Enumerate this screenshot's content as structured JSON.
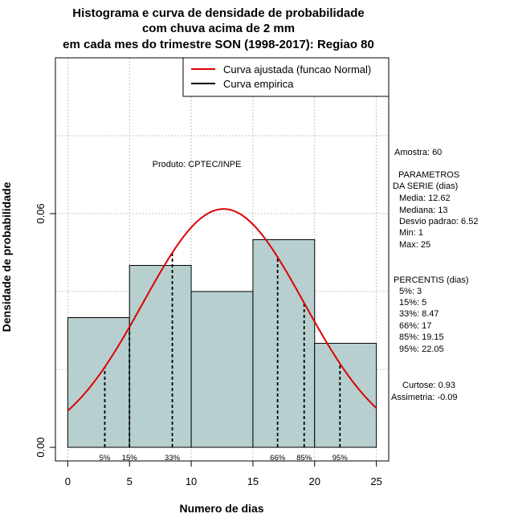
{
  "chart_data": {
    "type": "histogram",
    "title_lines": [
      "Histograma e curva de densidade de probabilidade",
      "com chuva acima de 2 mm",
      "em cada mes do trimestre SON (1998-2017): Regiao 80"
    ],
    "xlabel": "Numero de dias",
    "ylabel": "Densidade de probabilidade",
    "xlim": [
      -1,
      26
    ],
    "ylim": [
      -0.0035,
      0.1
    ],
    "x_ticks": [
      0,
      5,
      10,
      15,
      20,
      25
    ],
    "y_ticks": [
      0.0,
      0.06
    ],
    "y_tick_labels": [
      "0.00",
      "0.06"
    ],
    "bins": [
      {
        "start": 0,
        "end": 5,
        "density": 0.0333
      },
      {
        "start": 5,
        "end": 10,
        "density": 0.0467
      },
      {
        "start": 10,
        "end": 15,
        "density": 0.04
      },
      {
        "start": 15,
        "end": 20,
        "density": 0.0533
      },
      {
        "start": 20,
        "end": 25,
        "density": 0.0267
      }
    ],
    "fitted_curve": {
      "distribution": "normal",
      "mean": 12.62,
      "sd": 6.52,
      "x_range": [
        0,
        25
      ]
    },
    "percentiles": [
      {
        "label": "5%",
        "value": 3
      },
      {
        "label": "15%",
        "value": 5
      },
      {
        "label": "33%",
        "value": 8.47
      },
      {
        "label": "66%",
        "value": 17
      },
      {
        "label": "85%",
        "value": 19.15
      },
      {
        "label": "95%",
        "value": 22.05
      }
    ],
    "legend": {
      "position": "top-right",
      "entries": [
        {
          "label": "Curva ajustada (funcao Normal)",
          "color": "#dd0000"
        },
        {
          "label": "Curva empirica",
          "color": "#000000"
        }
      ]
    },
    "annotation": "Produto: CPTEC/INPE",
    "colors": {
      "bar_fill": "#b7cfcf",
      "curve": "#dd0000",
      "grid": "#b4b4b4"
    }
  },
  "stats_panel": {
    "sample": "Amostra: 60",
    "params_header": [
      "PARAMETROS",
      "DA SERIE (dias)"
    ],
    "params": [
      "Media: 12.62",
      "Mediana: 13",
      "Desvio padrao: 6.52",
      "Min: 1",
      "Max: 25"
    ],
    "percentis_header": "PERCENTIS (dias)",
    "percentis": [
      "5%: 3",
      "15%: 5",
      "33%: 8.47",
      "66%: 17",
      "85%: 19.15",
      "95%: 22.05"
    ],
    "curtose": "Curtose: 0.93",
    "assimetria": "Assimetria: -0.09"
  }
}
